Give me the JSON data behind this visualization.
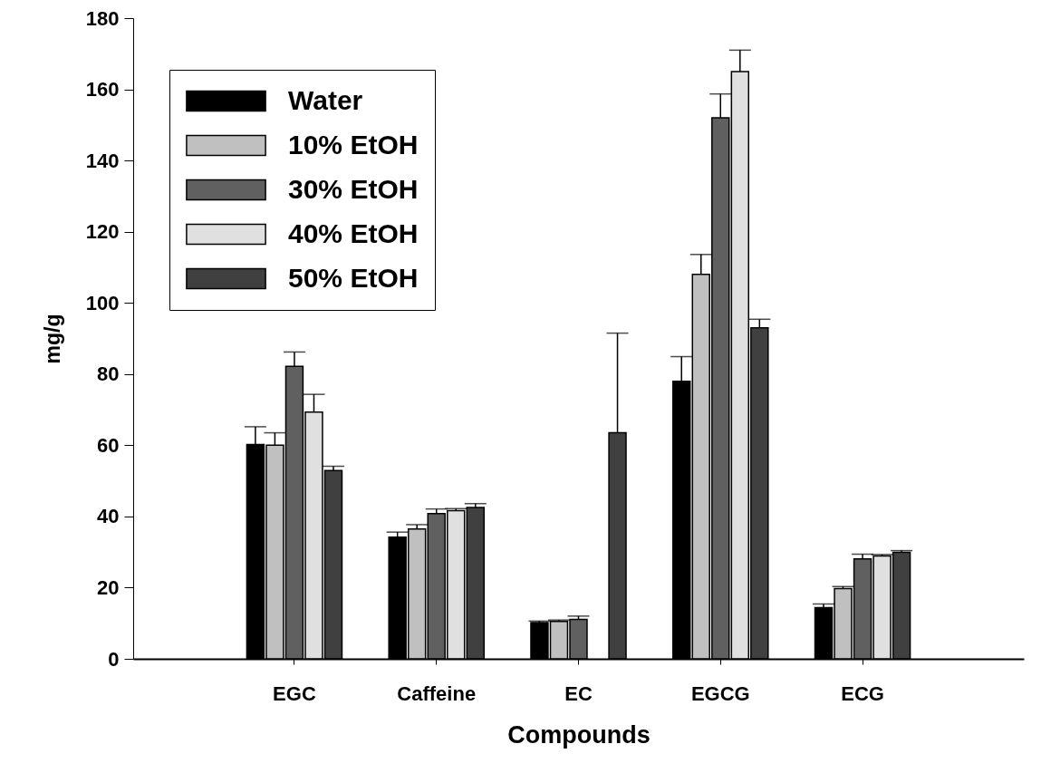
{
  "chart_data": {
    "type": "bar",
    "xlabel": "Compounds",
    "ylabel": "mg/g",
    "categories": [
      "EGC",
      "Caffeine",
      "EC",
      "EGCG",
      "ECG"
    ],
    "series": [
      {
        "name": "Water",
        "color": "#000000",
        "values": [
          60.2,
          34.2,
          10.2,
          78.0,
          14.4
        ],
        "errors": [
          5.0,
          1.4,
          0.4,
          6.9,
          1.0
        ]
      },
      {
        "name": "10% EtOH",
        "color": "#c0c0c0",
        "values": [
          60.0,
          36.5,
          10.5,
          108.0,
          19.7
        ],
        "errors": [
          3.5,
          1.2,
          0.4,
          5.6,
          0.6
        ]
      },
      {
        "name": "30% EtOH",
        "color": "#606060",
        "values": [
          82.2,
          40.8,
          11.1,
          152.0,
          28.1
        ],
        "errors": [
          4.0,
          1.3,
          0.9,
          6.7,
          1.3
        ]
      },
      {
        "name": "40% EtOH",
        "color": "#e0e0e0",
        "values": [
          69.3,
          41.6,
          null,
          165.0,
          28.9
        ],
        "errors": [
          5.0,
          0.6,
          null,
          6.0,
          0.4
        ]
      },
      {
        "name": "50% EtOH",
        "color": "#404040",
        "values": [
          52.9,
          42.5,
          63.5,
          93.0,
          29.9
        ],
        "errors": [
          1.2,
          1.1,
          28.0,
          2.4,
          0.5
        ]
      }
    ],
    "ylim": [
      0,
      180
    ],
    "yticks": [
      0,
      20,
      40,
      60,
      80,
      100,
      120,
      140,
      160,
      180
    ],
    "legend": "top left",
    "grid": false
  }
}
